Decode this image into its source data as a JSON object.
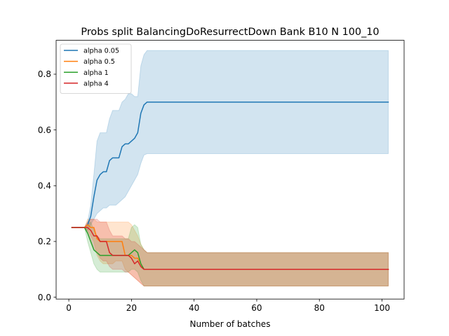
{
  "chart_data": {
    "type": "line",
    "title": "Probs split BalancingDoResurrectDown Bank B10 N 100_10",
    "xlabel": "Number of batches",
    "ylabel": "",
    "xlim": [
      -4.05,
      107.05
    ],
    "ylim": [
      -0.0065,
      0.9215
    ],
    "xticks": [
      0,
      20,
      40,
      60,
      80,
      100
    ],
    "yticks": [
      0.0,
      0.2,
      0.4,
      0.6,
      0.8
    ],
    "xtick_labels": [
      "0",
      "20",
      "40",
      "60",
      "80",
      "100"
    ],
    "ytick_labels": [
      "0.0",
      "0.2",
      "0.4",
      "0.6",
      "0.8"
    ],
    "grid": false,
    "legend_position": "upper-left",
    "series": [
      {
        "name": "alpha 0.05",
        "color": "#1f77b4",
        "x": [
          1,
          5,
          6,
          7,
          8,
          9,
          10,
          11,
          12,
          13,
          14,
          15,
          16,
          17,
          18,
          19,
          20,
          21,
          22,
          23,
          24,
          25,
          26,
          27,
          30,
          102
        ],
        "y": [
          0.25,
          0.25,
          0.26,
          0.29,
          0.36,
          0.42,
          0.44,
          0.45,
          0.45,
          0.49,
          0.5,
          0.5,
          0.5,
          0.54,
          0.55,
          0.55,
          0.56,
          0.57,
          0.59,
          0.66,
          0.69,
          0.7,
          0.7,
          0.7,
          0.7,
          0.7
        ],
        "lower": [
          0.25,
          0.25,
          0.24,
          0.26,
          0.28,
          0.3,
          0.31,
          0.32,
          0.32,
          0.33,
          0.33,
          0.33,
          0.34,
          0.35,
          0.36,
          0.38,
          0.4,
          0.42,
          0.44,
          0.48,
          0.51,
          0.515,
          0.515,
          0.515,
          0.515,
          0.515
        ],
        "upper": [
          0.25,
          0.25,
          0.27,
          0.33,
          0.44,
          0.56,
          0.59,
          0.59,
          0.59,
          0.64,
          0.67,
          0.67,
          0.67,
          0.7,
          0.71,
          0.73,
          0.73,
          0.72,
          0.72,
          0.83,
          0.87,
          0.885,
          0.885,
          0.885,
          0.885,
          0.885
        ]
      },
      {
        "name": "alpha 0.5",
        "color": "#ff7f0e",
        "x": [
          1,
          5,
          6,
          7,
          8,
          9,
          10,
          11,
          12,
          13,
          14,
          15,
          16,
          17,
          18,
          19,
          20,
          21,
          22,
          23,
          24,
          25,
          26,
          102
        ],
        "y": [
          0.25,
          0.25,
          0.26,
          0.25,
          0.25,
          0.21,
          0.2,
          0.2,
          0.2,
          0.2,
          0.2,
          0.2,
          0.2,
          0.2,
          0.15,
          0.15,
          0.15,
          0.14,
          0.14,
          0.12,
          0.1,
          0.1,
          0.1,
          0.1
        ],
        "lower": [
          0.25,
          0.25,
          0.24,
          0.22,
          0.2,
          0.15,
          0.13,
          0.12,
          0.12,
          0.12,
          0.12,
          0.13,
          0.13,
          0.13,
          0.1,
          0.09,
          0.08,
          0.07,
          0.06,
          0.05,
          0.04,
          0.04,
          0.04,
          0.04
        ],
        "upper": [
          0.25,
          0.25,
          0.28,
          0.28,
          0.28,
          0.27,
          0.27,
          0.27,
          0.27,
          0.27,
          0.27,
          0.27,
          0.27,
          0.27,
          0.27,
          0.27,
          0.26,
          0.24,
          0.22,
          0.19,
          0.17,
          0.16,
          0.16,
          0.16
        ]
      },
      {
        "name": "alpha 1",
        "color": "#2ca02c",
        "x": [
          1,
          5,
          6,
          7,
          8,
          9,
          10,
          11,
          12,
          13,
          14,
          15,
          16,
          17,
          18,
          19,
          20,
          21,
          22,
          23,
          24,
          25,
          26,
          102
        ],
        "y": [
          0.25,
          0.25,
          0.23,
          0.2,
          0.17,
          0.16,
          0.15,
          0.15,
          0.15,
          0.15,
          0.15,
          0.15,
          0.15,
          0.15,
          0.15,
          0.15,
          0.16,
          0.17,
          0.16,
          0.12,
          0.1,
          0.1,
          0.1,
          0.1
        ],
        "lower": [
          0.25,
          0.25,
          0.2,
          0.16,
          0.12,
          0.1,
          0.09,
          0.09,
          0.09,
          0.09,
          0.09,
          0.09,
          0.09,
          0.09,
          0.09,
          0.09,
          0.1,
          0.1,
          0.09,
          0.06,
          0.04,
          0.04,
          0.04,
          0.04
        ],
        "upper": [
          0.25,
          0.25,
          0.26,
          0.27,
          0.24,
          0.22,
          0.21,
          0.21,
          0.21,
          0.21,
          0.21,
          0.21,
          0.21,
          0.21,
          0.21,
          0.21,
          0.25,
          0.26,
          0.25,
          0.19,
          0.17,
          0.16,
          0.16,
          0.16
        ]
      },
      {
        "name": "alpha 4",
        "color": "#d62728",
        "x": [
          1,
          5,
          6,
          7,
          8,
          9,
          10,
          11,
          12,
          13,
          14,
          15,
          16,
          17,
          18,
          19,
          20,
          21,
          22,
          23,
          24,
          25,
          26,
          102
        ],
        "y": [
          0.25,
          0.25,
          0.25,
          0.24,
          0.22,
          0.22,
          0.2,
          0.2,
          0.2,
          0.16,
          0.15,
          0.15,
          0.15,
          0.15,
          0.15,
          0.15,
          0.14,
          0.12,
          0.13,
          0.11,
          0.1,
          0.1,
          0.1,
          0.1
        ],
        "lower": [
          0.25,
          0.25,
          0.23,
          0.2,
          0.17,
          0.16,
          0.14,
          0.13,
          0.13,
          0.11,
          0.1,
          0.1,
          0.1,
          0.1,
          0.09,
          0.09,
          0.08,
          0.07,
          0.06,
          0.05,
          0.04,
          0.04,
          0.04,
          0.04
        ],
        "upper": [
          0.25,
          0.25,
          0.27,
          0.28,
          0.28,
          0.28,
          0.27,
          0.27,
          0.27,
          0.24,
          0.22,
          0.22,
          0.22,
          0.22,
          0.21,
          0.21,
          0.2,
          0.2,
          0.19,
          0.18,
          0.17,
          0.16,
          0.16,
          0.16
        ]
      }
    ]
  }
}
